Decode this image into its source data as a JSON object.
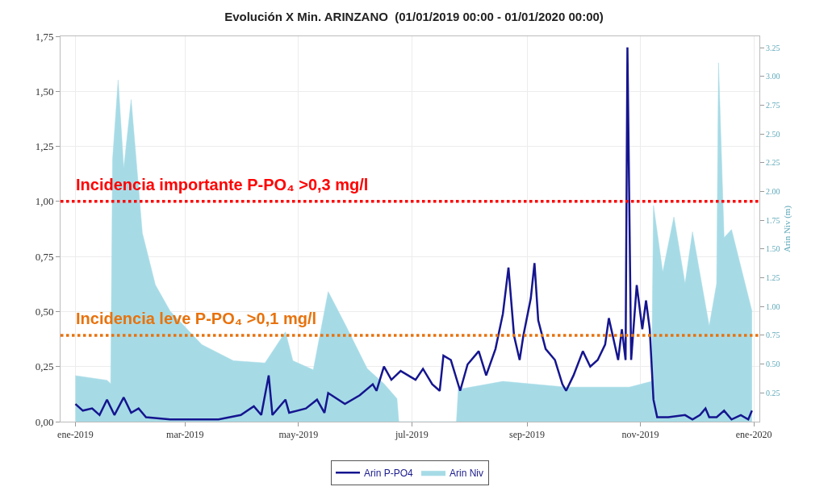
{
  "chart_data": {
    "type": "line",
    "title": "Evolución X Min. ARINZANO  (01/01/2019 00:00 - 01/01/2020 00:00)",
    "y2label": "Arin Niv (m)",
    "xlim": [
      "2018-12-24",
      "2020-01-04"
    ],
    "xticks": [
      {
        "value": "2019-01-01",
        "label": "ene-2019"
      },
      {
        "value": "2019-03-01",
        "label": "mar-2019"
      },
      {
        "value": "2019-05-01",
        "label": "may-2019"
      },
      {
        "value": "2019-07-01",
        "label": "jul-2019"
      },
      {
        "value": "2019-09-01",
        "label": "sep-2019"
      },
      {
        "value": "2019-11-01",
        "label": "nov-2019"
      },
      {
        "value": "2020-01-01",
        "label": "ene-2020"
      }
    ],
    "ylim": [
      0,
      1.75
    ],
    "yticks": [
      {
        "value": 0,
        "label": "0,00"
      },
      {
        "value": 0.25,
        "label": "0,25"
      },
      {
        "value": 0.5,
        "label": "0,50"
      },
      {
        "value": 0.75,
        "label": "0,75"
      },
      {
        "value": 1,
        "label": "1,00"
      },
      {
        "value": 1.25,
        "label": "1,25"
      },
      {
        "value": 1.5,
        "label": "1,50"
      },
      {
        "value": 1.75,
        "label": "1,75"
      }
    ],
    "y2lim": [
      0,
      3.35
    ],
    "y2ticks": [
      0.25,
      {
        "value": 0.5,
        "label": "0.50"
      },
      0.75,
      {
        "value": 1,
        "label": "1.00"
      },
      1.25,
      {
        "value": 1.5,
        "label": "1.50"
      },
      1.75,
      {
        "value": 2,
        "label": "2.00"
      },
      2.25,
      {
        "value": 2.5,
        "label": "2.50"
      },
      2.75,
      {
        "value": 3,
        "label": "3.00"
      },
      3.25
    ],
    "grid": true,
    "legend": "bottom",
    "series": [
      {
        "name": "Arin Niv",
        "type": "area",
        "axis": "y2",
        "color": "#a6dbe6",
        "x": [
          "2019-01-01",
          "2019-01-18",
          "2019-01-20",
          "2019-01-21",
          "2019-01-24",
          "2019-01-27",
          "2019-01-31",
          "2019-02-06",
          "2019-02-13",
          "2019-02-21",
          "2019-03-10",
          "2019-03-27",
          "2019-04-13",
          "2019-04-24",
          "2019-04-28",
          "2019-05-09",
          "2019-05-17",
          "2019-05-26",
          "2019-06-07",
          "2019-06-16",
          "2019-06-23",
          "2019-06-24",
          "2019-07-25",
          "2019-07-26",
          "2019-08-19",
          "2019-09-22",
          "2019-10-26",
          "2019-11-07",
          "2019-11-08",
          "2019-11-13",
          "2019-11-19",
          "2019-11-25",
          "2019-11-29",
          "2019-12-08",
          "2019-12-12",
          "2019-12-13",
          "2019-12-16",
          "2019-12-20",
          "2019-12-31"
        ],
        "values": [
          0.4,
          0.36,
          0.33,
          2.28,
          2.97,
          2.2,
          2.8,
          1.64,
          1.19,
          0.96,
          0.67,
          0.53,
          0.51,
          0.78,
          0.53,
          0.45,
          1.13,
          0.85,
          0.46,
          0.33,
          0.2,
          0,
          0,
          0.28,
          0.35,
          0.3,
          0.3,
          0.35,
          1.88,
          1.3,
          1.78,
          1.2,
          1.65,
          0.83,
          1.2,
          3.12,
          1.6,
          1.67,
          0.96
        ]
      },
      {
        "name": "Arin P-PO4",
        "color": "#15158f",
        "x": [
          "2019-01-01",
          "2019-01-05",
          "2019-01-10",
          "2019-01-14",
          "2019-01-18",
          "2019-01-22",
          "2019-01-27",
          "2019-01-31",
          "2019-02-04",
          "2019-02-08",
          "2019-02-21",
          "2019-03-06",
          "2019-03-19",
          "2019-03-31",
          "2019-04-07",
          "2019-04-11",
          "2019-04-15",
          "2019-04-17",
          "2019-04-24",
          "2019-04-26",
          "2019-05-05",
          "2019-05-11",
          "2019-05-15",
          "2019-05-17",
          "2019-05-26",
          "2019-06-03",
          "2019-06-10",
          "2019-06-12",
          "2019-06-16",
          "2019-06-20",
          "2019-06-25",
          "2019-06-29",
          "2019-07-03",
          "2019-07-07",
          "2019-07-12",
          "2019-07-16",
          "2019-07-18",
          "2019-07-22",
          "2019-07-27",
          "2019-07-31",
          "2019-08-06",
          "2019-08-10",
          "2019-08-15",
          "2019-08-19",
          "2019-08-22",
          "2019-08-25",
          "2019-08-28",
          "2019-08-30",
          "2019-09-03",
          "2019-09-05",
          "2019-09-07",
          "2019-09-11",
          "2019-09-16",
          "2019-09-20",
          "2019-09-22",
          "2019-09-26",
          "2019-10-01",
          "2019-10-05",
          "2019-10-09",
          "2019-10-13",
          "2019-10-15",
          "2019-10-20",
          "2019-10-22",
          "2019-10-24",
          "2019-10-25",
          "2019-10-27",
          "2019-10-30",
          "2019-11-02",
          "2019-11-04",
          "2019-11-06",
          "2019-11-08",
          "2019-11-10",
          "2019-11-16",
          "2019-11-25",
          "2019-11-29",
          "2019-12-03",
          "2019-12-06",
          "2019-12-08",
          "2019-12-12",
          "2019-12-16",
          "2019-12-20",
          "2019-12-25",
          "2019-12-29",
          "2019-12-31"
        ],
        "values": [
          0.08,
          0.05,
          0.06,
          0.03,
          0.1,
          0.03,
          0.11,
          0.04,
          0.06,
          0.02,
          0.01,
          0.01,
          0.01,
          0.03,
          0.07,
          0.03,
          0.21,
          0.03,
          0.1,
          0.04,
          0.06,
          0.1,
          0.04,
          0.13,
          0.08,
          0.12,
          0.17,
          0.14,
          0.25,
          0.19,
          0.23,
          0.21,
          0.19,
          0.24,
          0.17,
          0.14,
          0.3,
          0.28,
          0.14,
          0.26,
          0.32,
          0.21,
          0.33,
          0.49,
          0.7,
          0.39,
          0.28,
          0.39,
          0.56,
          0.72,
          0.46,
          0.33,
          0.28,
          0.17,
          0.14,
          0.21,
          0.32,
          0.25,
          0.28,
          0.35,
          0.47,
          0.28,
          0.42,
          0.28,
          1.7,
          0.28,
          0.62,
          0.42,
          0.55,
          0.42,
          0.1,
          0.02,
          0.02,
          0.03,
          0.01,
          0.03,
          0.06,
          0.02,
          0.02,
          0.05,
          0.01,
          0.03,
          0.01,
          0.05
        ]
      }
    ],
    "ref_lines": [
      {
        "axis": "y",
        "value": 1,
        "label": "Incidencia importante P-PO₄ >0,3 mg/l",
        "color": "#ff0000",
        "line_style": "dotted"
      },
      {
        "axis": "y2",
        "value": 0.75,
        "label": "Incidencia leve P-PO₄ >0,1 mg/l",
        "color": "#e8720c",
        "line_style": "dotted"
      }
    ]
  }
}
